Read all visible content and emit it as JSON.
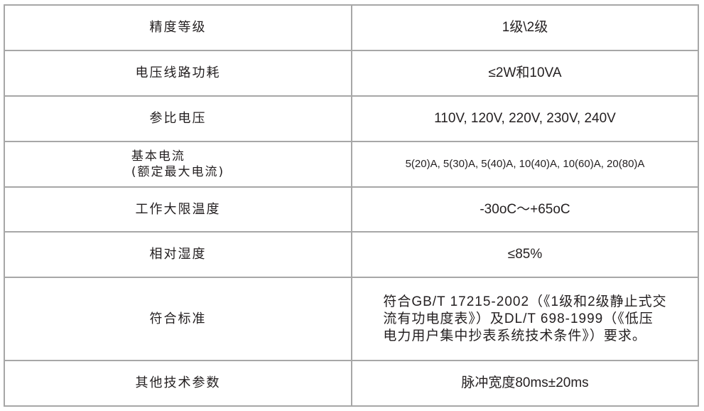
{
  "rows": [
    {
      "label": "精度等级",
      "value": "1级\\2级"
    },
    {
      "label": "电压线路功耗",
      "value": "≤2W和10VA"
    },
    {
      "label": "参比电压",
      "value": "110V, 120V, 220V, 230V, 240V"
    },
    {
      "label_line1": "基本电流",
      "label_line2": "(额定最大电流)",
      "value": "5(20)A, 5(30)A, 5(40)A, 10(40)A, 10(60)A, 20(80)A"
    },
    {
      "label": "工作大限温度",
      "value": "-30oC～+65oC"
    },
    {
      "label": "相对湿度",
      "value": "≤85%"
    },
    {
      "label": "符合标准",
      "value_lines": [
        "符合GB/T 17215-2002（《1级和2级静止式交",
        "流有功电度表》）及DL/T 698-1999（《低压",
        "电力用户集中抄表系统技术条件》）要求。"
      ]
    },
    {
      "label": "其他技术参数",
      "value": "脉冲宽度80ms±20ms"
    }
  ]
}
